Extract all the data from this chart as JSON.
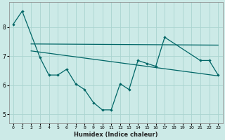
{
  "xlabel": "Humidex (Indice chaleur)",
  "background_color": "#cceae7",
  "grid_color": "#aad4d0",
  "line_color": "#006666",
  "line1_x": [
    0,
    1,
    3,
    4,
    5,
    6,
    7,
    8,
    9,
    10,
    11,
    12,
    13,
    14,
    15,
    16,
    17,
    21,
    22,
    23
  ],
  "line1_y": [
    8.1,
    8.55,
    6.95,
    6.35,
    6.35,
    6.55,
    6.05,
    5.85,
    5.4,
    5.15,
    5.15,
    6.05,
    5.85,
    6.85,
    6.75,
    6.65,
    7.65,
    6.85,
    6.85,
    6.35
  ],
  "line2_x": [
    2,
    23
  ],
  "line2_y": [
    7.42,
    7.38
  ],
  "line3_x": [
    2,
    23
  ],
  "line3_y": [
    7.18,
    6.32
  ],
  "ylim": [
    4.7,
    8.85
  ],
  "yticks": [
    5,
    6,
    7,
    8
  ],
  "xticks": [
    0,
    1,
    2,
    3,
    4,
    5,
    6,
    7,
    8,
    9,
    10,
    11,
    12,
    13,
    14,
    15,
    16,
    17,
    18,
    19,
    20,
    21,
    22,
    23
  ],
  "xlim": [
    -0.5,
    23.5
  ]
}
